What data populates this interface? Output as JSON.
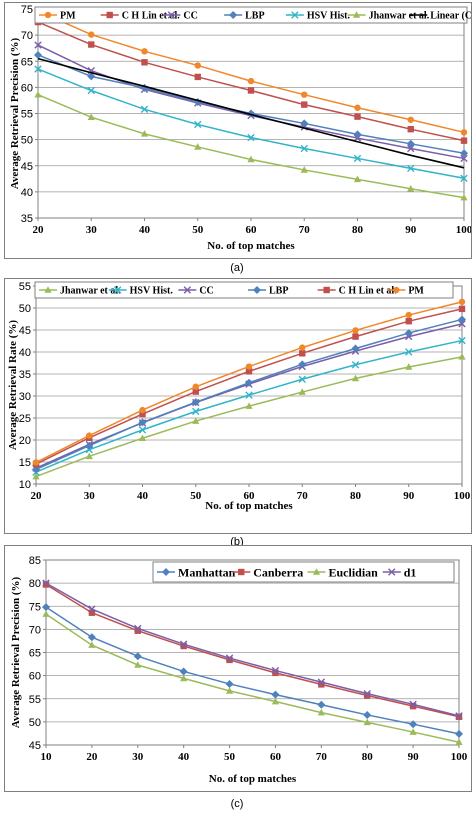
{
  "chart_data": [
    {
      "type": "line",
      "caption": "(a)",
      "xlabel": "No. of top matches",
      "ylabel": "Average Retrieval Precision (%)",
      "x": [
        20,
        30,
        40,
        50,
        60,
        70,
        80,
        90,
        100
      ],
      "xlim": [
        20,
        100
      ],
      "ylim": [
        35,
        75
      ],
      "yticks": [
        35,
        40,
        45,
        50,
        55,
        60,
        65,
        70,
        75
      ],
      "grid": true,
      "legend_position": "top",
      "series": [
        {
          "name": "PM",
          "color": "#f0872a",
          "marker": "circle",
          "values": [
            74.6,
            70.1,
            66.9,
            64.2,
            61.2,
            58.6,
            56.1,
            53.8,
            51.4
          ]
        },
        {
          "name": "C H Lin et al.",
          "color": "#c0504d",
          "marker": "square",
          "values": [
            72.5,
            68.2,
            64.8,
            62.0,
            59.4,
            56.7,
            54.4,
            52.0,
            49.8
          ]
        },
        {
          "name": "CC",
          "color": "#7b5ea7",
          "marker": "x",
          "values": [
            68.1,
            63.2,
            59.6,
            57.0,
            54.6,
            52.4,
            50.3,
            48.3,
            46.4
          ]
        },
        {
          "name": "LBP",
          "color": "#4f81bd",
          "marker": "diamond",
          "values": [
            66.2,
            62.1,
            59.9,
            57.2,
            55.0,
            53.1,
            51.0,
            49.2,
            47.4
          ]
        },
        {
          "name": "HSV Hist.",
          "color": "#31b4c9",
          "marker": "x",
          "values": [
            63.5,
            59.4,
            55.8,
            52.9,
            50.4,
            48.3,
            46.4,
            44.5,
            42.6
          ]
        },
        {
          "name": "Jhanwar et al.",
          "color": "#9bbb59",
          "marker": "triangle",
          "values": [
            58.6,
            54.3,
            51.1,
            48.6,
            46.2,
            44.2,
            42.4,
            40.6,
            38.9
          ]
        },
        {
          "name": "Linear (CC)",
          "color": "#000000",
          "marker": "none",
          "values": [
            65.5,
            62.8,
            60.2,
            57.5,
            54.8,
            52.2,
            49.6,
            47.0,
            44.6
          ]
        }
      ]
    },
    {
      "type": "line",
      "caption": "(b)",
      "xlabel": "No. of top matches",
      "ylabel": "Average Retrieval Rate (%)",
      "x": [
        20,
        30,
        40,
        50,
        60,
        70,
        80,
        90,
        100
      ],
      "xlim": [
        20,
        100
      ],
      "ylim": [
        10,
        55
      ],
      "yticks": [
        10,
        15,
        20,
        25,
        30,
        35,
        40,
        45,
        50,
        55
      ],
      "grid": true,
      "legend_position": "top",
      "series": [
        {
          "name": "Jhanwar et al.",
          "color": "#9bbb59",
          "marker": "triangle",
          "values": [
            11.7,
            16.3,
            20.4,
            24.3,
            27.7,
            30.9,
            34.0,
            36.6,
            38.9
          ]
        },
        {
          "name": "HSV Hist.",
          "color": "#31b4c9",
          "marker": "x",
          "values": [
            12.7,
            17.8,
            22.3,
            26.5,
            30.2,
            33.8,
            37.1,
            40.0,
            42.6
          ]
        },
        {
          "name": "CC",
          "color": "#7b5ea7",
          "marker": "x",
          "values": [
            13.6,
            19.0,
            23.9,
            28.5,
            32.7,
            36.7,
            40.2,
            43.5,
            46.4
          ]
        },
        {
          "name": "LBP",
          "color": "#4f81bd",
          "marker": "diamond",
          "values": [
            13.3,
            18.7,
            24.0,
            28.6,
            33.0,
            37.2,
            40.8,
            44.3,
            47.4
          ]
        },
        {
          "name": "C H Lin et al.",
          "color": "#c0504d",
          "marker": "square",
          "values": [
            14.5,
            20.5,
            25.9,
            31.0,
            35.6,
            39.7,
            43.5,
            47.0,
            49.8
          ]
        },
        {
          "name": "PM",
          "color": "#f0872a",
          "marker": "circle",
          "values": [
            14.9,
            21.0,
            26.8,
            32.1,
            36.7,
            41.0,
            44.9,
            48.4,
            51.4
          ]
        }
      ]
    },
    {
      "type": "line",
      "caption": "(c)",
      "xlabel": "No. of top matches",
      "ylabel": "Average Retrieval Precision (%)",
      "x": [
        10,
        20,
        30,
        40,
        50,
        60,
        70,
        80,
        90,
        100
      ],
      "xlim": [
        10,
        100
      ],
      "ylim": [
        45,
        85
      ],
      "yticks": [
        45,
        50,
        55,
        60,
        65,
        70,
        75,
        80,
        85
      ],
      "grid": true,
      "legend_position": "top-right",
      "series": [
        {
          "name": "Manhattan",
          "color": "#4f81bd",
          "marker": "diamond",
          "values": [
            74.8,
            68.3,
            64.2,
            60.9,
            58.2,
            55.9,
            53.7,
            51.5,
            49.5,
            47.4
          ]
        },
        {
          "name": "Canberra",
          "color": "#c0504d",
          "marker": "square",
          "values": [
            79.7,
            73.6,
            69.7,
            66.4,
            63.4,
            60.6,
            58.1,
            55.7,
            53.4,
            51.1
          ]
        },
        {
          "name": "Euclidian",
          "color": "#9bbb59",
          "marker": "triangle",
          "values": [
            73.3,
            66.6,
            62.3,
            59.4,
            56.7,
            54.4,
            52.0,
            49.9,
            47.8,
            45.6
          ]
        },
        {
          "name": "d1",
          "color": "#7b5ea7",
          "marker": "x",
          "values": [
            80.0,
            74.4,
            70.2,
            66.8,
            63.8,
            61.1,
            58.6,
            56.1,
            53.8,
            51.3
          ]
        }
      ]
    }
  ]
}
